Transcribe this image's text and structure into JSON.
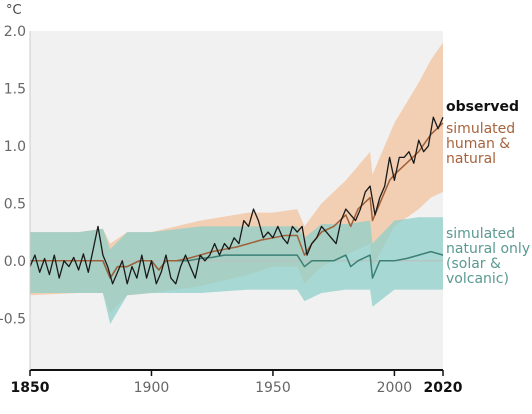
{
  "chart_data": {
    "type": "line",
    "unit_label": "°C",
    "xlim": [
      1850,
      2020
    ],
    "ylim": [
      -0.95,
      2.0
    ],
    "y_ticks": [
      {
        "value": 2.0,
        "label": "2.0"
      },
      {
        "value": 1.5,
        "label": "1.5"
      },
      {
        "value": 1.0,
        "label": "1.0"
      },
      {
        "value": 0.5,
        "label": "0.5"
      },
      {
        "value": 0.0,
        "label": "0.0"
      },
      {
        "value": -0.5,
        "label": "-0.5"
      }
    ],
    "x_ticks": [
      {
        "value": 1850,
        "label": "1850",
        "bold": true
      },
      {
        "value": 1900,
        "label": "1900",
        "bold": false
      },
      {
        "value": 1950,
        "label": "1950",
        "bold": false
      },
      {
        "value": 2000,
        "label": "2000",
        "bold": false
      },
      {
        "value": 2020,
        "label": "2020",
        "bold": true
      }
    ],
    "colors": {
      "observed": "#1a1a1a",
      "human_natural_line": "#a0603a",
      "human_natural_band": "#f2c9a8",
      "natural_line": "#3c7f73",
      "natural_band": "#8ecfc8",
      "legend_observed": "#111111",
      "legend_human": "#a8633c",
      "legend_natural": "#5a9a92",
      "background": "#f1f1f1"
    },
    "legend": {
      "observed": [
        "observed"
      ],
      "human": [
        "simulated",
        "human &",
        "natural"
      ],
      "natural": [
        "simulated",
        "natural only",
        "(solar &",
        "volcanic)"
      ]
    },
    "series": [
      {
        "name": "observed",
        "points": [
          [
            1850,
            -0.05
          ],
          [
            1852,
            0.05
          ],
          [
            1854,
            -0.1
          ],
          [
            1856,
            0.02
          ],
          [
            1858,
            -0.12
          ],
          [
            1860,
            0.05
          ],
          [
            1862,
            -0.15
          ],
          [
            1864,
            0.0
          ],
          [
            1866,
            -0.05
          ],
          [
            1868,
            0.03
          ],
          [
            1870,
            -0.08
          ],
          [
            1872,
            0.06
          ],
          [
            1874,
            -0.1
          ],
          [
            1876,
            0.1
          ],
          [
            1878,
            0.3
          ],
          [
            1880,
            0.05
          ],
          [
            1882,
            -0.05
          ],
          [
            1884,
            -0.2
          ],
          [
            1886,
            -0.1
          ],
          [
            1888,
            0.0
          ],
          [
            1890,
            -0.2
          ],
          [
            1892,
            -0.05
          ],
          [
            1894,
            -0.15
          ],
          [
            1896,
            0.05
          ],
          [
            1898,
            -0.15
          ],
          [
            1900,
            0.0
          ],
          [
            1902,
            -0.2
          ],
          [
            1904,
            -0.1
          ],
          [
            1906,
            0.05
          ],
          [
            1908,
            -0.15
          ],
          [
            1910,
            -0.2
          ],
          [
            1912,
            -0.05
          ],
          [
            1914,
            0.05
          ],
          [
            1916,
            -0.05
          ],
          [
            1918,
            -0.15
          ],
          [
            1920,
            0.05
          ],
          [
            1922,
            0.0
          ],
          [
            1924,
            0.05
          ],
          [
            1926,
            0.15
          ],
          [
            1928,
            0.05
          ],
          [
            1930,
            0.15
          ],
          [
            1932,
            0.1
          ],
          [
            1934,
            0.2
          ],
          [
            1936,
            0.15
          ],
          [
            1938,
            0.35
          ],
          [
            1940,
            0.3
          ],
          [
            1942,
            0.45
          ],
          [
            1944,
            0.35
          ],
          [
            1946,
            0.2
          ],
          [
            1948,
            0.25
          ],
          [
            1950,
            0.2
          ],
          [
            1952,
            0.3
          ],
          [
            1954,
            0.2
          ],
          [
            1956,
            0.15
          ],
          [
            1958,
            0.3
          ],
          [
            1960,
            0.25
          ],
          [
            1962,
            0.3
          ],
          [
            1964,
            0.05
          ],
          [
            1966,
            0.15
          ],
          [
            1968,
            0.2
          ],
          [
            1970,
            0.3
          ],
          [
            1972,
            0.25
          ],
          [
            1974,
            0.2
          ],
          [
            1976,
            0.15
          ],
          [
            1978,
            0.35
          ],
          [
            1980,
            0.45
          ],
          [
            1982,
            0.4
          ],
          [
            1984,
            0.35
          ],
          [
            1986,
            0.45
          ],
          [
            1988,
            0.6
          ],
          [
            1990,
            0.65
          ],
          [
            1992,
            0.4
          ],
          [
            1994,
            0.55
          ],
          [
            1996,
            0.65
          ],
          [
            1998,
            0.9
          ],
          [
            2000,
            0.7
          ],
          [
            2002,
            0.9
          ],
          [
            2004,
            0.9
          ],
          [
            2006,
            0.95
          ],
          [
            2008,
            0.85
          ],
          [
            2010,
            1.05
          ],
          [
            2012,
            0.95
          ],
          [
            2014,
            1.0
          ],
          [
            2016,
            1.25
          ],
          [
            2018,
            1.15
          ],
          [
            2020,
            1.25
          ]
        ]
      },
      {
        "name": "simulated human & natural",
        "points": [
          [
            1850,
            0.0
          ],
          [
            1855,
            0.0
          ],
          [
            1860,
            0.0
          ],
          [
            1865,
            0.0
          ],
          [
            1870,
            0.0
          ],
          [
            1875,
            0.0
          ],
          [
            1880,
            0.0
          ],
          [
            1883,
            -0.15
          ],
          [
            1886,
            -0.05
          ],
          [
            1890,
            -0.05
          ],
          [
            1895,
            0.0
          ],
          [
            1900,
            0.0
          ],
          [
            1903,
            -0.08
          ],
          [
            1906,
            0.0
          ],
          [
            1910,
            0.0
          ],
          [
            1915,
            0.02
          ],
          [
            1920,
            0.05
          ],
          [
            1925,
            0.08
          ],
          [
            1930,
            0.1
          ],
          [
            1935,
            0.12
          ],
          [
            1940,
            0.15
          ],
          [
            1945,
            0.18
          ],
          [
            1950,
            0.2
          ],
          [
            1955,
            0.22
          ],
          [
            1960,
            0.22
          ],
          [
            1963,
            0.05
          ],
          [
            1966,
            0.15
          ],
          [
            1970,
            0.25
          ],
          [
            1975,
            0.3
          ],
          [
            1980,
            0.4
          ],
          [
            1982,
            0.3
          ],
          [
            1985,
            0.45
          ],
          [
            1990,
            0.55
          ],
          [
            1991,
            0.35
          ],
          [
            1994,
            0.5
          ],
          [
            1998,
            0.7
          ],
          [
            2000,
            0.75
          ],
          [
            2005,
            0.85
          ],
          [
            2010,
            0.95
          ],
          [
            2015,
            1.1
          ],
          [
            2020,
            1.2
          ]
        ]
      },
      {
        "name": "simulated natural only",
        "points": [
          [
            1850,
            0.0
          ],
          [
            1855,
            0.0
          ],
          [
            1860,
            0.0
          ],
          [
            1865,
            0.0
          ],
          [
            1870,
            0.0
          ],
          [
            1875,
            0.0
          ],
          [
            1880,
            0.0
          ],
          [
            1883,
            -0.15
          ],
          [
            1886,
            -0.05
          ],
          [
            1890,
            -0.05
          ],
          [
            1895,
            0.0
          ],
          [
            1900,
            0.0
          ],
          [
            1903,
            -0.08
          ],
          [
            1906,
            0.0
          ],
          [
            1910,
            0.0
          ],
          [
            1915,
            0.0
          ],
          [
            1920,
            0.02
          ],
          [
            1925,
            0.03
          ],
          [
            1930,
            0.05
          ],
          [
            1935,
            0.05
          ],
          [
            1940,
            0.05
          ],
          [
            1945,
            0.05
          ],
          [
            1950,
            0.05
          ],
          [
            1955,
            0.05
          ],
          [
            1960,
            0.05
          ],
          [
            1963,
            -0.05
          ],
          [
            1966,
            0.0
          ],
          [
            1970,
            0.0
          ],
          [
            1975,
            0.0
          ],
          [
            1980,
            0.05
          ],
          [
            1982,
            -0.05
          ],
          [
            1985,
            0.0
          ],
          [
            1990,
            0.05
          ],
          [
            1991,
            -0.15
          ],
          [
            1994,
            0.0
          ],
          [
            2000,
            0.0
          ],
          [
            2005,
            0.02
          ],
          [
            2010,
            0.05
          ],
          [
            2015,
            0.08
          ],
          [
            2020,
            0.05
          ]
        ]
      }
    ],
    "bands": [
      {
        "name": "simulated human & natural range",
        "x": [
          1850,
          1870,
          1880,
          1883,
          1890,
          1900,
          1920,
          1940,
          1950,
          1960,
          1963,
          1970,
          1980,
          1990,
          1991,
          2000,
          2010,
          2015,
          2020
        ],
        "lower": [
          -0.3,
          -0.28,
          -0.28,
          -0.45,
          -0.3,
          -0.28,
          -0.22,
          -0.12,
          -0.05,
          -0.05,
          -0.2,
          -0.05,
          0.05,
          0.15,
          -0.05,
          0.3,
          0.45,
          0.55,
          0.6
        ],
        "upper": [
          0.25,
          0.25,
          0.28,
          0.15,
          0.25,
          0.25,
          0.35,
          0.42,
          0.42,
          0.45,
          0.3,
          0.5,
          0.7,
          0.95,
          0.75,
          1.2,
          1.55,
          1.75,
          1.9
        ]
      },
      {
        "name": "simulated natural only range",
        "x": [
          1850,
          1870,
          1880,
          1883,
          1890,
          1900,
          1920,
          1940,
          1950,
          1960,
          1963,
          1970,
          1980,
          1990,
          1991,
          2000,
          2010,
          2020
        ],
        "lower": [
          -0.28,
          -0.28,
          -0.28,
          -0.55,
          -0.3,
          -0.28,
          -0.28,
          -0.25,
          -0.25,
          -0.25,
          -0.35,
          -0.28,
          -0.25,
          -0.25,
          -0.4,
          -0.25,
          -0.25,
          -0.25
        ],
        "upper": [
          0.25,
          0.25,
          0.28,
          0.1,
          0.25,
          0.25,
          0.3,
          0.3,
          0.3,
          0.3,
          0.2,
          0.32,
          0.32,
          0.35,
          0.15,
          0.35,
          0.38,
          0.38
        ]
      }
    ]
  }
}
